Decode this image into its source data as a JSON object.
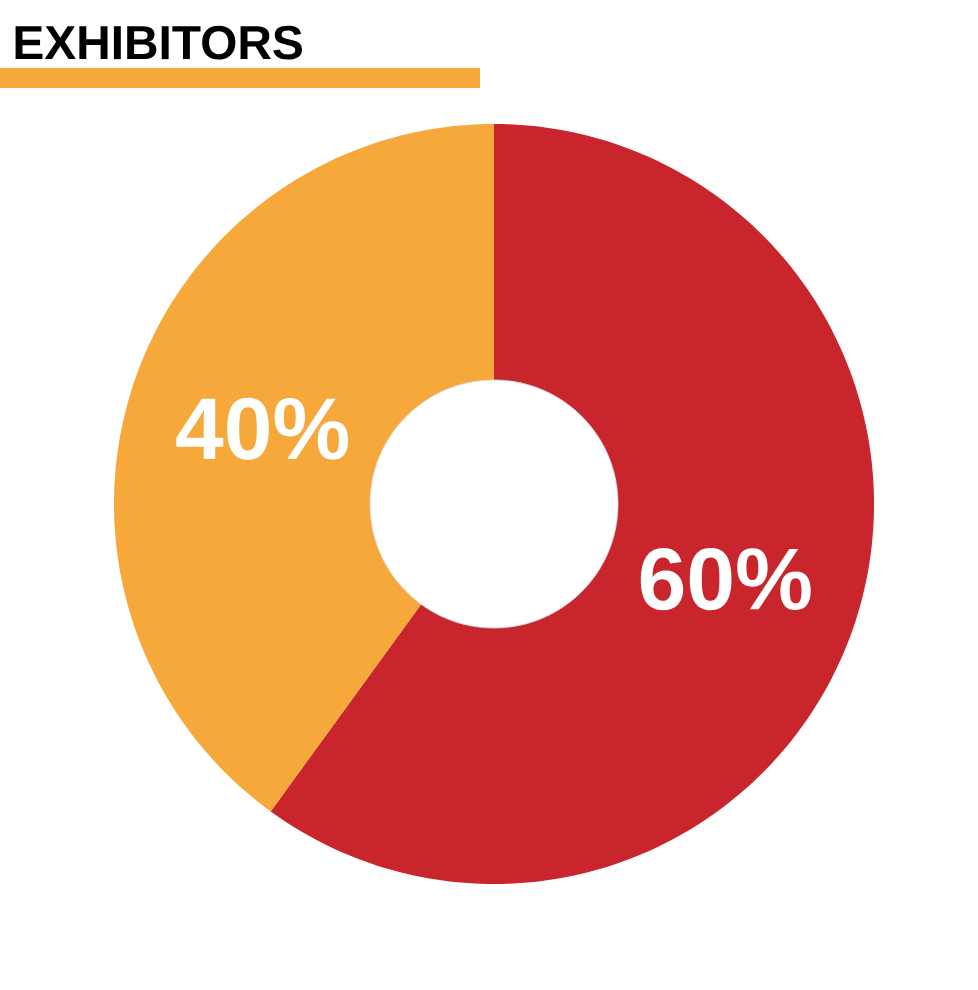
{
  "chart_data": {
    "type": "donut",
    "title": "EXHIBITORS",
    "categories": [
      null,
      null
    ],
    "values": [
      60,
      40
    ],
    "colors": [
      "#c8262c",
      "#f6a83a"
    ],
    "value_labels": [
      "60%",
      "40%"
    ]
  }
}
